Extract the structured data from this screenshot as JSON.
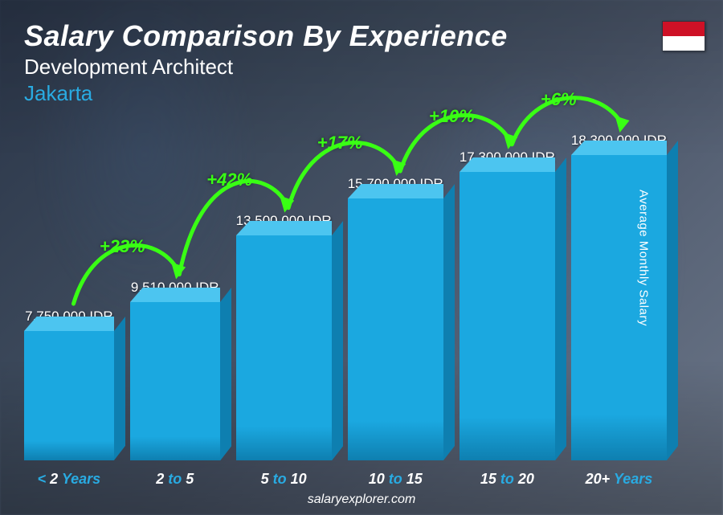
{
  "header": {
    "title": "Salary Comparison By Experience",
    "subtitle": "Development Architect",
    "location": "Jakarta"
  },
  "flag": {
    "name": "indonesia-flag",
    "top_color": "#ce1126",
    "bottom_color": "#ffffff"
  },
  "y_axis_label": "Average Monthly Salary",
  "footer": "salaryexplorer.com",
  "chart": {
    "type": "bar",
    "currency": "IDR",
    "max_value": 18300000,
    "bar_color_front": "#1ba8e0",
    "bar_color_top": "#4cc5f0",
    "bar_color_side": "#0e7fb0",
    "increase_color": "#39ff14",
    "label_color": "#29abe2",
    "value_color": "#ffffff",
    "background_color": "transparent",
    "bars": [
      {
        "label_pre": "< ",
        "label_num": "2",
        "label_post": " Years",
        "value": 7750000,
        "value_text": "7,750,000 IDR",
        "increase": null
      },
      {
        "label_pre": "",
        "label_num": "2",
        "label_mid": " to ",
        "label_num2": "5",
        "label_post": "",
        "value": 9510000,
        "value_text": "9,510,000 IDR",
        "increase": "+23%"
      },
      {
        "label_pre": "",
        "label_num": "5",
        "label_mid": " to ",
        "label_num2": "10",
        "label_post": "",
        "value": 13500000,
        "value_text": "13,500,000 IDR",
        "increase": "+42%"
      },
      {
        "label_pre": "",
        "label_num": "10",
        "label_mid": " to ",
        "label_num2": "15",
        "label_post": "",
        "value": 15700000,
        "value_text": "15,700,000 IDR",
        "increase": "+17%"
      },
      {
        "label_pre": "",
        "label_num": "15",
        "label_mid": " to ",
        "label_num2": "20",
        "label_post": "",
        "value": 17300000,
        "value_text": "17,300,000 IDR",
        "increase": "+10%"
      },
      {
        "label_pre": "",
        "label_num": "20+",
        "label_post": " Years",
        "value": 18300000,
        "value_text": "18,300,000 IDR",
        "increase": "+6%"
      }
    ]
  }
}
